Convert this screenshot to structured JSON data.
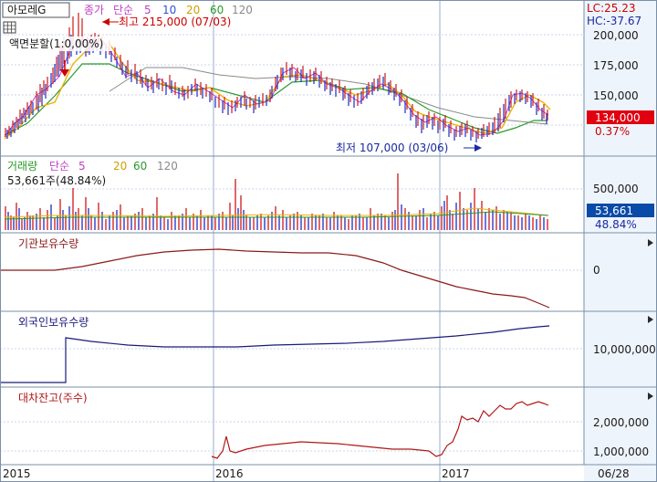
{
  "colors": {
    "background": "#ffffff",
    "plot_bg": "#ffffff",
    "scale_bg": "#e6f0fb",
    "grid": "#c8d6e8",
    "border": "#7a8fa8",
    "price_up": "#d01818",
    "price_down": "#1c2cc8",
    "ma5": "#c040c0",
    "ma10": "#3050d8",
    "ma20": "#f0b000",
    "ma60": "#2a9a2a",
    "ma120": "#8a8a8a",
    "volume_up": "#d01818",
    "volume_down": "#1c2cc8",
    "institution_line": "#8a1a1a",
    "foreign_line": "#1a1a7a",
    "short_interest_line": "#b01818",
    "highlight_box": "#e00010",
    "highlight_box_blue": "#0a4aa8",
    "text": "#1a1a1a",
    "max_label": "#cc0000",
    "min_label": "#1a2aa0"
  },
  "stock_selector": "아모레G",
  "grid_icon": "grid-icon",
  "price_panel": {
    "legend": {
      "close": "종가",
      "ma_type": "단순",
      "periods": [
        "5",
        "10",
        "20",
        "60",
        "120"
      ]
    },
    "high_annotation": "최고 215,000 (07/03)",
    "low_annotation": "최저 107,000 (03/06)",
    "split_note": "액면분할(",
    "split_note_tail": "1:0,00%)",
    "lc_label": "LC:25.23",
    "hc_label": "HC:-37.67",
    "y_ticks": [
      "200,000",
      "175,000",
      "150,000"
    ],
    "current_price": "134,000",
    "current_change": "0.37%"
  },
  "volume_panel": {
    "legend": {
      "title": "거래량",
      "ma_type": "단순",
      "periods": [
        "5",
        "20",
        "60",
        "120"
      ]
    },
    "summary": "53,661주(48.84%)",
    "y_ticks": [
      "500,000"
    ],
    "current_volume": "53,661",
    "current_pct": "48.84%"
  },
  "institution_panel": {
    "title": "기관보유수량",
    "y_ticks": [
      "0"
    ]
  },
  "foreign_panel": {
    "title": "외국인보유수량",
    "y_ticks": [
      "10,000,000"
    ]
  },
  "short_panel": {
    "title": "대차잔고(주수)",
    "y_ticks": [
      "2,000,000",
      "1,000,000"
    ]
  },
  "x_axis": {
    "labels": [
      "2015",
      "2016",
      "2017"
    ],
    "current_date": "06/28"
  },
  "chart_data": {
    "type": "line",
    "panels": [
      {
        "name": "price",
        "ylim": [
          95000,
          225000
        ],
        "high": 215000,
        "high_date": "07/03",
        "low": 107000,
        "low_date": "03/06",
        "last_close": 134000
      },
      {
        "name": "volume",
        "ylim": [
          0,
          800000
        ],
        "last": 53661
      },
      {
        "name": "institution"
      },
      {
        "name": "foreign"
      },
      {
        "name": "short_interest",
        "ylim": [
          700000,
          2900000
        ]
      }
    ],
    "x_labels": [
      "2015",
      "2016",
      "2017",
      "06/28"
    ]
  }
}
